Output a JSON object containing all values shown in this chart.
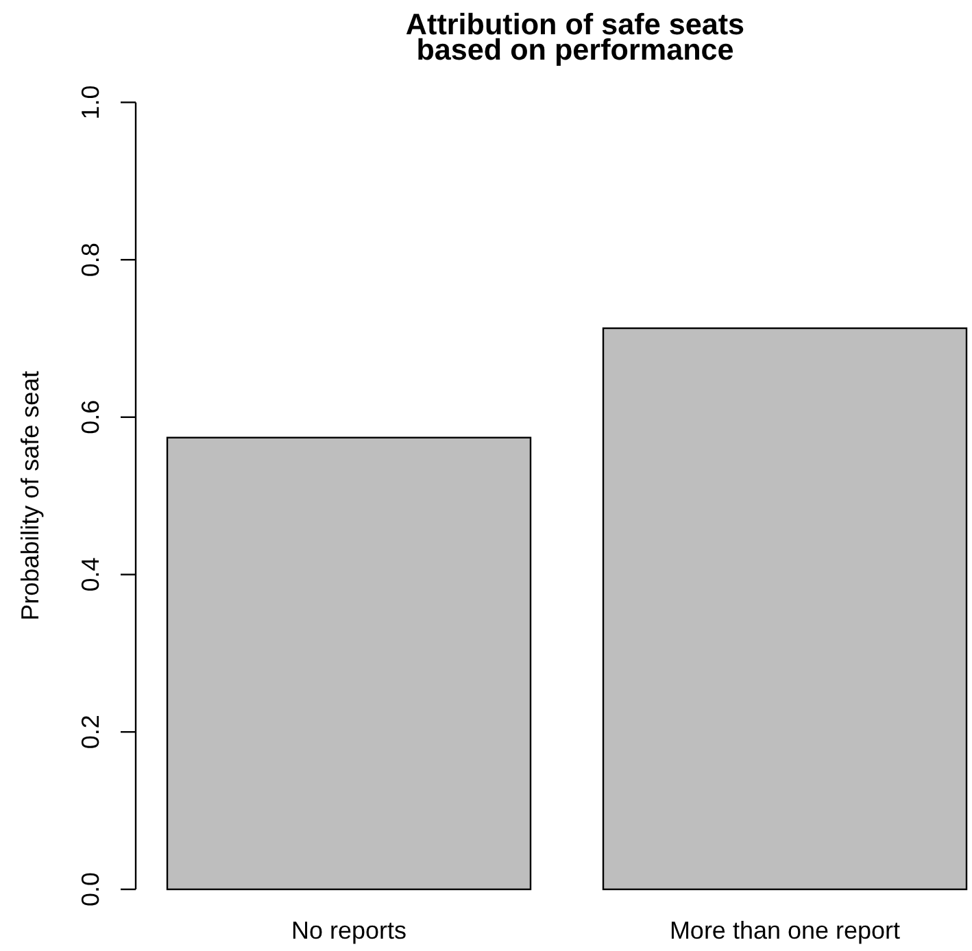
{
  "chart_data": {
    "type": "bar",
    "title": "Attribution of safe seats\nbased on performance",
    "ylabel": "Probability of safe seat",
    "categories": [
      "No reports",
      "More than one report"
    ],
    "values": [
      0.574,
      0.713
    ],
    "color": "#bebebe",
    "ylim": [
      0,
      1
    ],
    "yticks": [
      {
        "value": 0,
        "label": "0.0"
      },
      0.2,
      0.4,
      0.6,
      0.8,
      {
        "value": 1,
        "label": "1.0"
      }
    ]
  }
}
